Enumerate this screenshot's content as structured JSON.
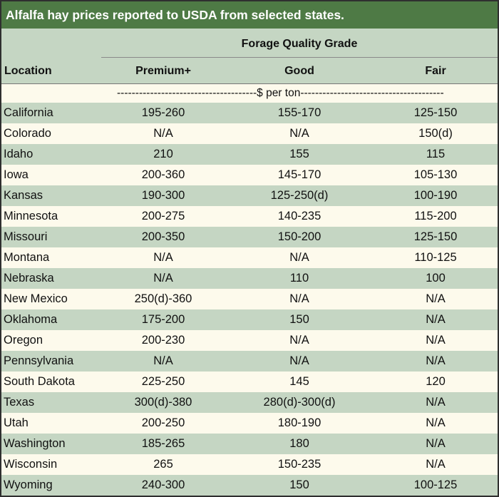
{
  "title": "Alfalfa hay prices reported to USDA from selected states.",
  "header": {
    "group_label": "Forage Quality Grade",
    "location": "Location",
    "premium": "Premium+",
    "good": "Good",
    "fair": "Fair"
  },
  "unit_label": "--------------------------------------$ per ton---------------------------------------",
  "rows": [
    {
      "location": "California",
      "premium": "195-260",
      "good": "155-170",
      "fair": "125-150"
    },
    {
      "location": "Colorado",
      "premium": "N/A",
      "good": "N/A",
      "fair": "150(d)"
    },
    {
      "location": "Idaho",
      "premium": "210",
      "good": "155",
      "fair": "115"
    },
    {
      "location": "Iowa",
      "premium": "200-360",
      "good": "145-170",
      "fair": "105-130"
    },
    {
      "location": "Kansas",
      "premium": "190-300",
      "good": "125-250(d)",
      "fair": "100-190"
    },
    {
      "location": "Minnesota",
      "premium": "200-275",
      "good": "140-235",
      "fair": "115-200"
    },
    {
      "location": "Missouri",
      "premium": "200-350",
      "good": "150-200",
      "fair": "125-150"
    },
    {
      "location": "Montana",
      "premium": "N/A",
      "good": "N/A",
      "fair": "110-125"
    },
    {
      "location": "Nebraska",
      "premium": "N/A",
      "good": "110",
      "fair": "100"
    },
    {
      "location": "New Mexico",
      "premium": "250(d)-360",
      "good": "N/A",
      "fair": "N/A"
    },
    {
      "location": "Oklahoma",
      "premium": "175-200",
      "good": "150",
      "fair": "N/A"
    },
    {
      "location": "Oregon",
      "premium": "200-230",
      "good": "N/A",
      "fair": "N/A"
    },
    {
      "location": "Pennsylvania",
      "premium": "N/A",
      "good": "N/A",
      "fair": "N/A"
    },
    {
      "location": "South Dakota",
      "premium": "225-250",
      "good": "145",
      "fair": "120"
    },
    {
      "location": "Texas",
      "premium": "300(d)-380",
      "good": "280(d)-300(d)",
      "fair": "N/A"
    },
    {
      "location": "Utah",
      "premium": "200-250",
      "good": "180-190",
      "fair": "N/A"
    },
    {
      "location": "Washington",
      "premium": "185-265",
      "good": "180",
      "fair": "N/A"
    },
    {
      "location": "Wisconsin",
      "premium": "265",
      "good": "150-235",
      "fair": "N/A"
    },
    {
      "location": "Wyoming",
      "premium": "240-300",
      "good": "150",
      "fair": "100-125"
    }
  ]
}
